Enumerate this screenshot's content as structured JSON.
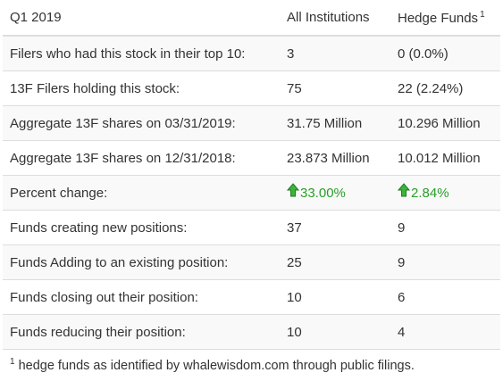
{
  "header": {
    "period": "Q1 2019",
    "col_all": "All Institutions",
    "col_hedge": "Hedge Funds",
    "col_hedge_note": "1"
  },
  "rows": [
    {
      "label": "Filers who had this stock in their top 10:",
      "all": "3",
      "hedge": "0 (0.0%)"
    },
    {
      "label": "13F Filers holding this stock:",
      "all": "75",
      "hedge": "22 (2.24%)"
    },
    {
      "label": "Aggregate 13F shares on 03/31/2019:",
      "all": "31.75 Million",
      "hedge": "10.296 Million"
    },
    {
      "label": "Aggregate 13F shares on 12/31/2018:",
      "all": "23.873 Million",
      "hedge": "10.012 Million"
    },
    {
      "label": "Percent change:",
      "all": "33.00%",
      "hedge": "2.84%"
    },
    {
      "label": "Funds creating new positions:",
      "all": "37",
      "hedge": "9"
    },
    {
      "label": "Funds Adding to an existing position:",
      "all": "25",
      "hedge": "9"
    },
    {
      "label": "Funds closing out their position:",
      "all": "10",
      "hedge": "6"
    },
    {
      "label": "Funds reducing their position:",
      "all": "10",
      "hedge": "4"
    }
  ],
  "icons": {
    "increase": "green-up-arrow-icon"
  },
  "colors": {
    "increase": "#2a9d2a",
    "stripe": "#f9f9f9",
    "border": "#dddddd"
  },
  "footnote": {
    "mark": "1",
    "text": "hedge funds as identified by whalewisdom.com through public filings."
  }
}
